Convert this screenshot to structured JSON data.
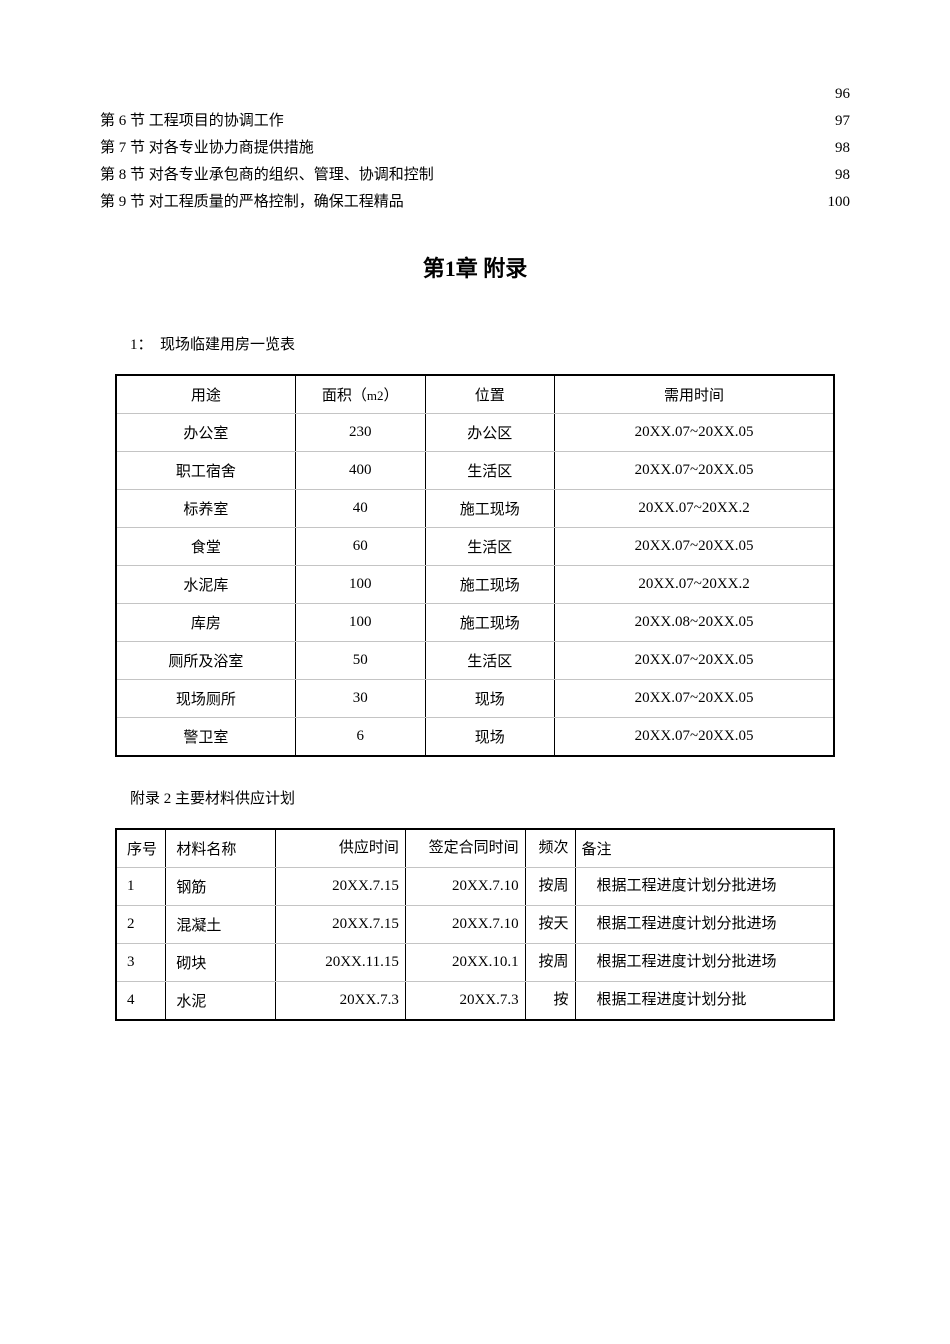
{
  "toc": [
    {
      "text": "",
      "page": "96"
    },
    {
      "text": "第 6 节 工程项目的协调工作",
      "page": "97"
    },
    {
      "text": "第 7 节 对各专业协力商提供措施",
      "page": "98"
    },
    {
      "text": "第 8 节 对各专业承包商的组织、管理、协调和控制",
      "page": "98"
    },
    {
      "text": "第 9 节 对工程质量的严格控制，确保工程精品",
      "page": "100"
    }
  ],
  "chapter_title": "第1章 附录",
  "section1_label": "1：　现场临建用房一览表",
  "table1": {
    "header": [
      "用途",
      "面积（m2）",
      "位置",
      "需用时间"
    ],
    "rows": [
      [
        "办公室",
        "230",
        "办公区",
        "20XX.07~20XX.05"
      ],
      [
        "职工宿舍",
        "400",
        "生活区",
        "20XX.07~20XX.05"
      ],
      [
        "标养室",
        "40",
        "施工现场",
        "20XX.07~20XX.2"
      ],
      [
        "食堂",
        "60",
        "生活区",
        "20XX.07~20XX.05"
      ],
      [
        "水泥库",
        "100",
        "施工现场",
        "20XX.07~20XX.2"
      ],
      [
        "库房",
        "100",
        "施工现场",
        "20XX.08~20XX.05"
      ],
      [
        "厕所及浴室",
        "50",
        "生活区",
        "20XX.07~20XX.05"
      ],
      [
        "现场厕所",
        "30",
        "现场",
        "20XX.07~20XX.05"
      ],
      [
        "警卫室",
        "6",
        "现场",
        "20XX.07~20XX.05"
      ]
    ]
  },
  "section2_label": "附录 2 主要材料供应计划",
  "table2": {
    "header": [
      "序号",
      "材料名称",
      "供应时间",
      "签定合同时间",
      "频次",
      "备注"
    ],
    "rows": [
      [
        "1",
        "钢筋",
        "20XX.7.15",
        "20XX.7.10",
        "按周",
        "　根据工程进度计划分批进场"
      ],
      [
        "2",
        "混凝土",
        "20XX.7.15",
        "20XX.7.10",
        "按天",
        "　根据工程进度计划分批进场"
      ],
      [
        "3",
        "砌块",
        "20XX.11.15",
        "20XX.10.1",
        "按周",
        "　根据工程进度计划分批进场"
      ],
      [
        "4",
        "水泥",
        "20XX.7.3",
        "20XX.7.3",
        "按",
        "　根据工程进度计划分批"
      ]
    ]
  }
}
